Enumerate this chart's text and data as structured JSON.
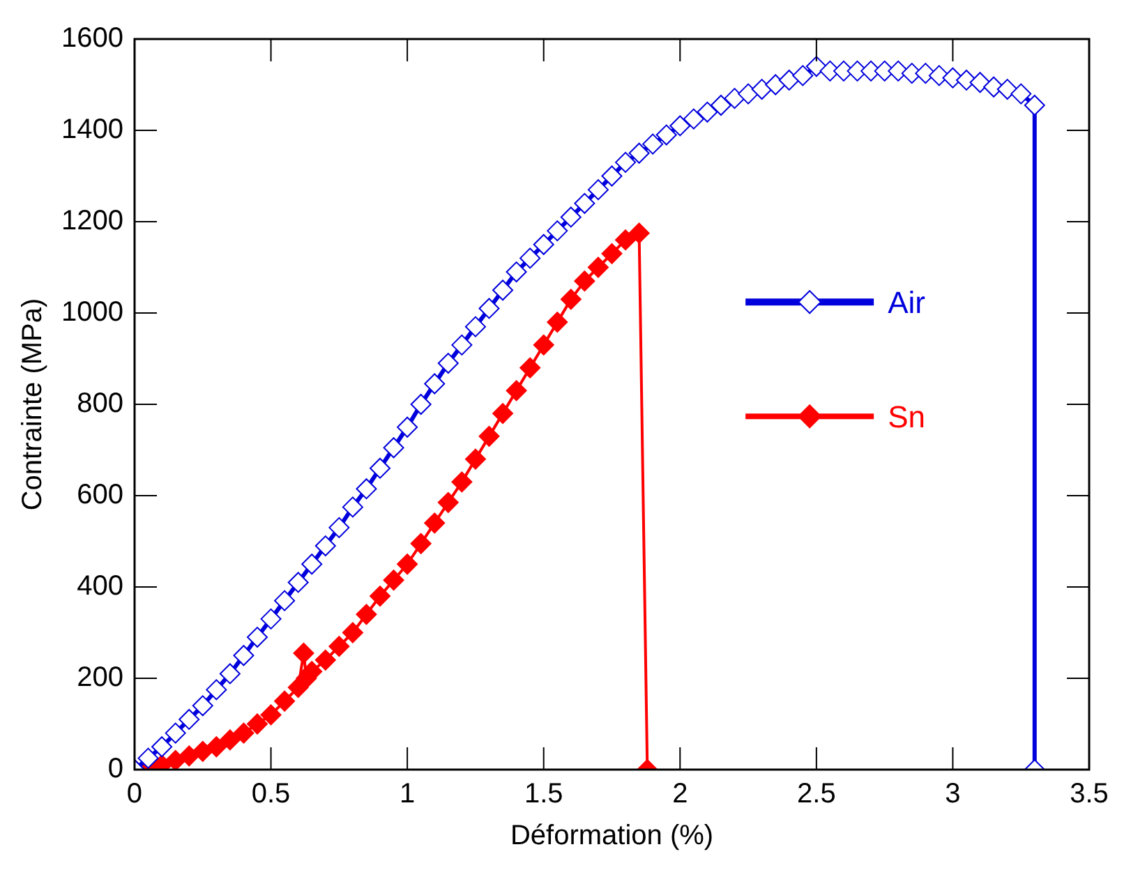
{
  "chart_data": {
    "type": "line",
    "xlabel": "Déformation (%)",
    "ylabel": "Contrainte (MPa)",
    "xlim": [
      0,
      3.5
    ],
    "xticks": [
      0,
      0.5,
      1,
      1.5,
      2,
      2.5,
      3,
      3.5
    ],
    "ylim": [
      0,
      1600
    ],
    "yticks": [
      0,
      200,
      400,
      600,
      800,
      1000,
      1200,
      1400,
      1600
    ],
    "grid": false,
    "legend": "right",
    "marker": "diamond",
    "line_style": "solid",
    "series": [
      {
        "name": "Air",
        "color": "#0000dd",
        "x": [
          0,
          0.05,
          0.1,
          0.15,
          0.2,
          0.25,
          0.3,
          0.35,
          0.4,
          0.45,
          0.5,
          0.55,
          0.6,
          0.65,
          0.7,
          0.75,
          0.8,
          0.85,
          0.9,
          0.95,
          1,
          1.05,
          1.1,
          1.15,
          1.2,
          1.25,
          1.3,
          1.35,
          1.4,
          1.45,
          1.5,
          1.55,
          1.6,
          1.65,
          1.7,
          1.75,
          1.8,
          1.85,
          1.9,
          1.95,
          2,
          2.05,
          2.1,
          2.15,
          2.2,
          2.25,
          2.3,
          2.35,
          2.4,
          2.45,
          2.5,
          2.55,
          2.6,
          2.65,
          2.7,
          2.75,
          2.8,
          2.85,
          2.9,
          2.95,
          3,
          3.05,
          3.1,
          3.15,
          3.2,
          3.25,
          3.3,
          3.3
        ],
        "values": [
          0,
          25,
          50,
          80,
          110,
          140,
          175,
          210,
          250,
          290,
          330,
          370,
          410,
          450,
          490,
          530,
          575,
          615,
          660,
          705,
          750,
          800,
          845,
          890,
          930,
          970,
          1010,
          1050,
          1090,
          1120,
          1150,
          1180,
          1210,
          1240,
          1270,
          1300,
          1330,
          1350,
          1370,
          1390,
          1410,
          1425,
          1440,
          1455,
          1470,
          1480,
          1490,
          1500,
          1510,
          1520,
          1540,
          1530,
          1530,
          1530,
          1530,
          1530,
          1530,
          1525,
          1525,
          1520,
          1515,
          1510,
          1505,
          1495,
          1490,
          1480,
          1455,
          0
        ]
      },
      {
        "name": "Sn",
        "color": "#ff0000",
        "x": [
          0,
          0.05,
          0.1,
          0.15,
          0.2,
          0.25,
          0.3,
          0.35,
          0.4,
          0.45,
          0.5,
          0.55,
          0.6,
          0.62,
          0.63,
          0.65,
          0.7,
          0.75,
          0.8,
          0.85,
          0.9,
          0.95,
          1,
          1.05,
          1.1,
          1.15,
          1.2,
          1.25,
          1.3,
          1.35,
          1.4,
          1.45,
          1.5,
          1.55,
          1.6,
          1.65,
          1.7,
          1.75,
          1.8,
          1.85,
          1.88
        ],
        "values": [
          0,
          5,
          10,
          20,
          30,
          40,
          50,
          65,
          80,
          100,
          120,
          150,
          180,
          255,
          200,
          215,
          240,
          270,
          300,
          340,
          380,
          415,
          450,
          495,
          540,
          585,
          630,
          680,
          730,
          780,
          830,
          880,
          930,
          980,
          1030,
          1070,
          1100,
          1130,
          1160,
          1175,
          0
        ]
      }
    ]
  }
}
